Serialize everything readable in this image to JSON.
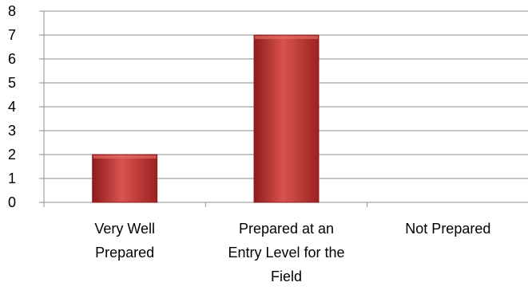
{
  "chart_data": {
    "type": "bar",
    "categories": [
      [
        "Very Well",
        "Prepared"
      ],
      [
        "Prepared at an",
        "Entry Level for the",
        "Field"
      ],
      [
        "Not Prepared"
      ]
    ],
    "values": [
      2,
      7,
      0
    ],
    "ylim": [
      0,
      8
    ],
    "yticks": [
      "0",
      "1",
      "2",
      "3",
      "4",
      "5",
      "6",
      "7",
      "8"
    ],
    "grid": true,
    "bar_color": "#c0392b",
    "bar_color_dark": "#8e1b1b",
    "bar_color_light": "#e06a62"
  }
}
